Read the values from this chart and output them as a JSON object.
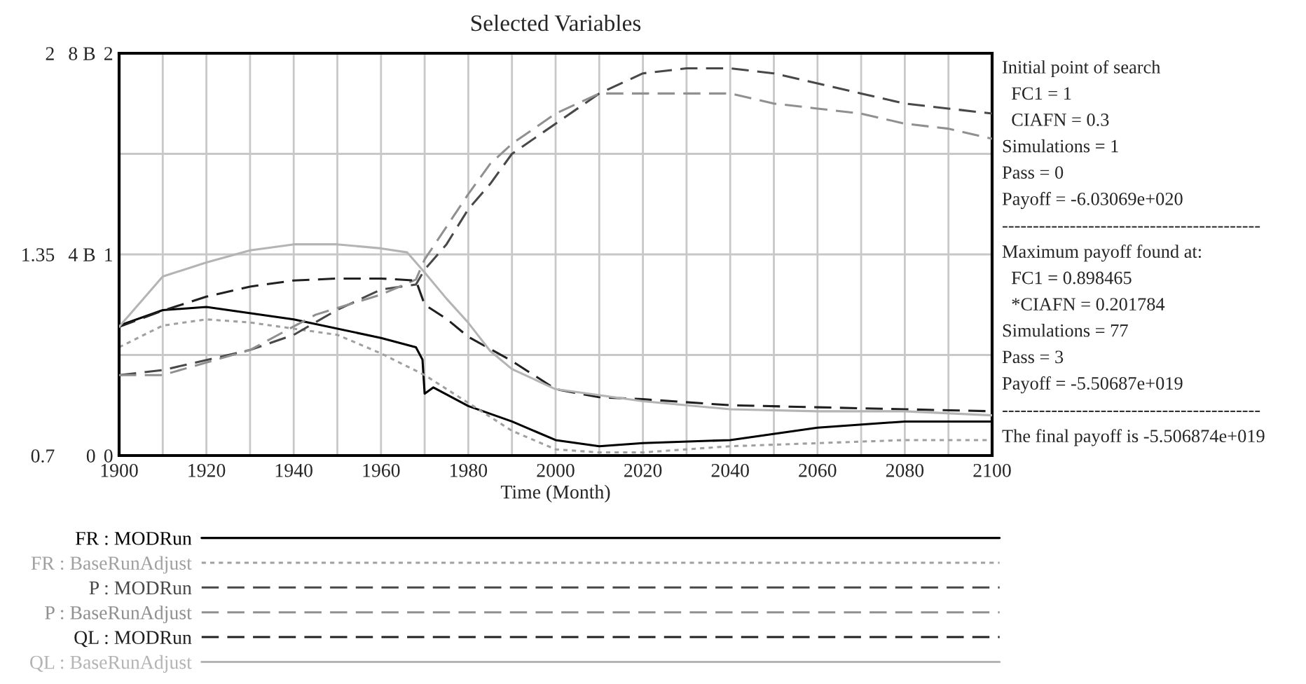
{
  "chart_data": {
    "type": "line",
    "title": "Selected Variables",
    "xlabel": "Time (Month)",
    "xlim": [
      1900,
      2100
    ],
    "xticks": [
      1900,
      {
        "value": 1910,
        "label": null
      },
      1920,
      {
        "value": 1930,
        "label": null
      },
      1940,
      {
        "value": 1950,
        "label": null
      },
      1960,
      {
        "value": 1970,
        "label": null
      },
      1980,
      {
        "value": 1990,
        "label": null
      },
      2000,
      {
        "value": 2010,
        "label": null
      },
      2020,
      {
        "value": 2030,
        "label": null
      },
      2040,
      {
        "value": 2050,
        "label": null
      },
      2060,
      {
        "value": 2070,
        "label": null
      },
      2080,
      {
        "value": 2090,
        "label": null
      },
      2100
    ],
    "ylim": [
      0.7,
      2
    ],
    "yticks": [
      0.7,
      {
        "value": 1.025,
        "label": null
      },
      1.35,
      {
        "value": 1.675,
        "label": null
      },
      2
    ],
    "y2lim": [
      0,
      8
    ],
    "y2ticks": [
      0,
      {
        "value": 4,
        "label": "4 B"
      },
      {
        "value": 8,
        "label": "8 B"
      }
    ],
    "y3lim": [
      0,
      2
    ],
    "y3ticks": [
      0,
      1,
      2
    ],
    "grid": true,
    "legend": "bottom",
    "series": [
      {
        "name": "FR : MODRun",
        "color": "#000000",
        "line_style": "solid",
        "x": [
          1900,
          1910,
          1920,
          1940,
          1960,
          1968,
          1969.5,
          1970,
          1972,
          1980,
          1990,
          2000,
          2010,
          2020,
          2040,
          2060,
          2080,
          2100
        ],
        "values": [
          1.12,
          1.17,
          1.18,
          1.14,
          1.08,
          1.05,
          1.01,
          0.9,
          0.92,
          0.86,
          0.81,
          0.75,
          0.73,
          0.74,
          0.75,
          0.79,
          0.81,
          0.81
        ]
      },
      {
        "name": "FR : BaseRunAdjust",
        "color": "#a0a0a0",
        "line_style": "dotted",
        "x": [
          1900,
          1910,
          1920,
          1930,
          1940,
          1950,
          1960,
          1970,
          1980,
          1990,
          2000,
          2010,
          2020,
          2040,
          2060,
          2080,
          2100
        ],
        "values": [
          1.05,
          1.12,
          1.14,
          1.13,
          1.11,
          1.09,
          1.03,
          0.96,
          0.87,
          0.78,
          0.72,
          0.71,
          0.71,
          0.73,
          0.74,
          0.75,
          0.75
        ]
      },
      {
        "name": "P : MODRun",
        "color": "#484848",
        "line_style": "dashed",
        "axis": "y2",
        "x": [
          1900,
          1910,
          1920,
          1930,
          1940,
          1950,
          1960,
          1968,
          1970,
          1975,
          1980,
          1985,
          1990,
          2000,
          2010,
          2020,
          2030,
          2040,
          2050,
          2060,
          2070,
          2080,
          2090,
          2100
        ],
        "values": [
          1.6,
          1.7,
          1.9,
          2.1,
          2.4,
          2.9,
          3.3,
          3.4,
          3.7,
          4.2,
          4.9,
          5.4,
          6.0,
          6.6,
          7.2,
          7.6,
          7.7,
          7.7,
          7.6,
          7.4,
          7.2,
          7.0,
          6.9,
          6.8
        ]
      },
      {
        "name": "P : BaseRunAdjust",
        "color": "#909090",
        "line_style": "dashed",
        "axis": "y2",
        "x": [
          1900,
          1910,
          1930,
          1945,
          1960,
          1968,
          1970,
          1980,
          1985,
          1990,
          2000,
          2010,
          2020,
          2030,
          2040,
          2050,
          2060,
          2070,
          2080,
          2090,
          2100
        ],
        "values": [
          1.6,
          1.6,
          2.1,
          2.8,
          3.2,
          3.5,
          3.9,
          5.2,
          5.8,
          6.2,
          6.8,
          7.2,
          7.2,
          7.2,
          7.2,
          7.0,
          6.9,
          6.8,
          6.6,
          6.5,
          6.3
        ]
      },
      {
        "name": "QL : MODRun",
        "color": "#202020",
        "line_style": "dashed",
        "axis": "y3",
        "x": [
          1900,
          1910,
          1920,
          1930,
          1940,
          1950,
          1960,
          1968,
          1970,
          1975,
          1980,
          1990,
          2000,
          2010,
          2020,
          2040,
          2060,
          2080,
          2100
        ],
        "values": [
          0.64,
          0.72,
          0.79,
          0.84,
          0.87,
          0.88,
          0.88,
          0.87,
          0.75,
          0.68,
          0.59,
          0.47,
          0.33,
          0.29,
          0.28,
          0.25,
          0.24,
          0.23,
          0.22
        ]
      },
      {
        "name": "QL : BaseRunAdjust",
        "color": "#b4b4b4",
        "line_style": "solid",
        "axis": "y3",
        "x": [
          1900,
          1910,
          1920,
          1930,
          1940,
          1950,
          1960,
          1966,
          1970,
          1975,
          1980,
          1985,
          1990,
          2000,
          2020,
          2040,
          2060,
          2080,
          2100
        ],
        "values": [
          0.64,
          0.89,
          0.96,
          1.02,
          1.05,
          1.05,
          1.03,
          1.01,
          0.91,
          0.78,
          0.66,
          0.52,
          0.43,
          0.33,
          0.27,
          0.23,
          0.22,
          0.22,
          0.2
        ]
      }
    ],
    "annotations": [
      "Initial point of search",
      "  FC1 = 1",
      "  CIAFN = 0.3",
      "Simulations = 1",
      "Pass = 0",
      "Payoff = -6.03069e+020",
      "------------------------------------------",
      "Maximum payoff found at:",
      "  FC1 = 0.898465",
      "  *CIAFN = 0.201784",
      "Simulations = 77",
      "Pass = 3",
      "Payoff = -5.50687e+019",
      "------------------------------------------",
      "The final payoff is -5.506874e+019"
    ]
  }
}
